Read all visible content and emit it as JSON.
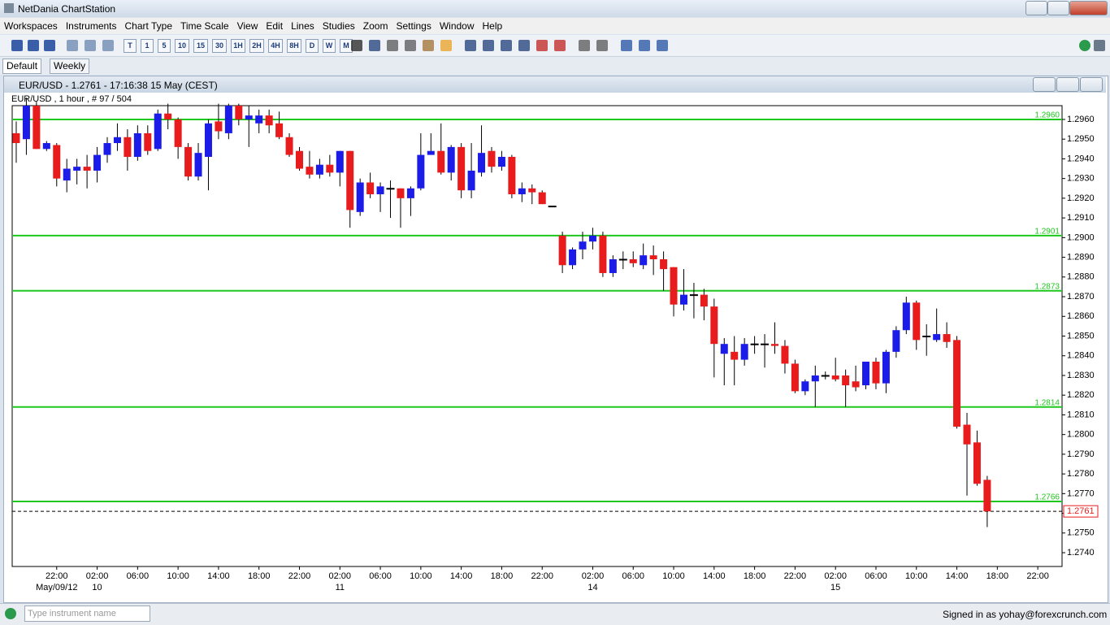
{
  "window": {
    "title": "NetDania ChartStation"
  },
  "menu": [
    "Workspaces",
    "Instruments",
    "Chart Type",
    "Time Scale",
    "View",
    "Edit",
    "Lines",
    "Studies",
    "Zoom",
    "Settings",
    "Window",
    "Help"
  ],
  "toolbar": [
    "T",
    "1",
    "5",
    "10",
    "15",
    "30",
    "1H",
    "2H",
    "4H",
    "8H",
    "D",
    "W",
    "M"
  ],
  "tabs": [
    "Default",
    "Weekly"
  ],
  "chart_window": {
    "title": "EUR/USD - 1.2761 - 17:16:38  15 May (CEST)",
    "info": "EUR/USD , 1 hour , # 97 / 504"
  },
  "status": {
    "search_placeholder": "Type instrument name",
    "signed_in": "Signed in as yohay@forexcrunch.com"
  },
  "chart_data": {
    "type": "candlestick",
    "up_color": "#1c1ce8",
    "down_color": "#e81c1c",
    "level_color": "#1ec81e",
    "open": [
      1.2953,
      1.295,
      1.2967,
      1.2945,
      1.2947,
      1.2929,
      1.2934,
      1.2936,
      1.2934,
      1.2942,
      1.2948,
      1.2951,
      1.2941,
      1.2953,
      1.2945,
      1.2963,
      1.296,
      1.2946,
      1.2931,
      1.2941,
      1.2959,
      1.2953,
      1.2967,
      1.296,
      1.2958,
      1.2962,
      1.2958,
      1.2951,
      1.2944,
      1.2936,
      1.2932,
      1.2937,
      1.2933,
      1.2944,
      1.2913,
      1.2928,
      1.2922,
      1.2925,
      1.2925,
      1.292,
      1.2925,
      1.2942,
      1.2944,
      1.2933,
      1.2946,
      1.2924,
      1.2933,
      1.2944,
      1.2936,
      1.2941,
      1.2922,
      1.2925,
      1.2923,
      1.2916,
      1.2901,
      1.2886,
      1.2894,
      1.2898,
      1.2901,
      1.2882,
      1.2889,
      1.2889,
      1.2886,
      1.2891,
      1.2889,
      1.2885,
      1.2866,
      1.2871,
      1.2871,
      1.2865,
      1.2841,
      1.2842,
      1.2838,
      1.2846,
      1.2846,
      1.2846,
      1.2845,
      1.2836,
      1.2822,
      1.2827,
      1.283,
      1.283,
      1.283,
      1.2827,
      1.2825,
      1.2837,
      1.2826,
      1.2842,
      1.2853,
      1.2867,
      1.285,
      1.2848,
      1.2851,
      1.2848,
      1.2805,
      1.2796,
      1.2777
    ],
    "high": [
      1.2959,
      1.2971,
      1.2969,
      1.2949,
      1.2948,
      1.294,
      1.294,
      1.2942,
      1.2946,
      1.2951,
      1.2958,
      1.2955,
      1.2957,
      1.2957,
      1.2965,
      1.2968,
      1.2961,
      1.2948,
      1.2948,
      1.296,
      1.2968,
      1.2968,
      1.2968,
      1.2967,
      1.2965,
      1.2965,
      1.2964,
      1.2953,
      1.2946,
      1.2944,
      1.294,
      1.2942,
      1.2944,
      1.2944,
      1.293,
      1.2933,
      1.2928,
      1.2929,
      1.2925,
      1.2926,
      1.2953,
      1.2953,
      1.2958,
      1.2947,
      1.2948,
      1.2948,
      1.2957,
      1.2946,
      1.2944,
      1.2942,
      1.2928,
      1.2927,
      1.2924,
      1.2916,
      1.2903,
      1.2895,
      1.2903,
      1.2905,
      1.2903,
      1.2891,
      1.2893,
      1.2893,
      1.2897,
      1.2896,
      1.2893,
      1.2885,
      1.2884,
      1.2877,
      1.2874,
      1.2869,
      1.2849,
      1.285,
      1.2849,
      1.285,
      1.2851,
      1.2857,
      1.2848,
      1.2838,
      1.2828,
      1.2835,
      1.2832,
      1.2839,
      1.2833,
      1.2835,
      1.2837,
      1.2839,
      1.2843,
      1.2855,
      1.287,
      1.2868,
      1.2856,
      1.2864,
      1.2857,
      1.285,
      1.2811,
      1.2802,
      1.2779
    ],
    "low": [
      1.2938,
      1.2942,
      1.2945,
      1.2944,
      1.2926,
      1.2923,
      1.2927,
      1.2925,
      1.2928,
      1.2938,
      1.2944,
      1.2934,
      1.2939,
      1.2942,
      1.2944,
      1.2955,
      1.294,
      1.2929,
      1.2929,
      1.2924,
      1.295,
      1.295,
      1.2957,
      1.2946,
      1.2953,
      1.2953,
      1.295,
      1.2941,
      1.2934,
      1.293,
      1.293,
      1.2931,
      1.2926,
      1.2905,
      1.2911,
      1.292,
      1.2913,
      1.291,
      1.2905,
      1.2911,
      1.2924,
      1.2942,
      1.2932,
      1.2929,
      1.292,
      1.292,
      1.2931,
      1.2933,
      1.2934,
      1.292,
      1.2918,
      1.2917,
      1.2917,
      1.2916,
      1.2882,
      1.2884,
      1.2889,
      1.2894,
      1.288,
      1.288,
      1.2884,
      1.2885,
      1.2884,
      1.2881,
      1.2873,
      1.286,
      1.2863,
      1.2859,
      1.2858,
      1.2829,
      1.2825,
      1.2825,
      1.2835,
      1.2841,
      1.2834,
      1.2841,
      1.2831,
      1.2821,
      1.282,
      1.2814,
      1.2828,
      1.2827,
      1.2814,
      1.2822,
      1.2823,
      1.2823,
      1.2821,
      1.2839,
      1.2851,
      1.2843,
      1.284,
      1.2847,
      1.2844,
      1.2803,
      1.2769,
      1.2774,
      1.2753
    ],
    "close": [
      1.2948,
      1.2967,
      1.2945,
      1.2948,
      1.293,
      1.2935,
      1.2936,
      1.2934,
      1.2942,
      1.2948,
      1.2951,
      1.2941,
      1.2953,
      1.2944,
      1.2963,
      1.296,
      1.2946,
      1.2931,
      1.2943,
      1.2958,
      1.2954,
      1.2967,
      1.296,
      1.2962,
      1.2962,
      1.2957,
      1.2951,
      1.2942,
      1.2935,
      1.2932,
      1.2937,
      1.2933,
      1.2944,
      1.2914,
      1.2928,
      1.2922,
      1.2926,
      1.2925,
      1.292,
      1.2925,
      1.2942,
      1.2944,
      1.2933,
      1.2946,
      1.2924,
      1.2934,
      1.2943,
      1.2936,
      1.2941,
      1.2922,
      1.2925,
      1.2923,
      1.2917,
      1.2916,
      1.2886,
      1.2894,
      1.2898,
      1.2901,
      1.2882,
      1.2889,
      1.2889,
      1.2887,
      1.2891,
      1.2889,
      1.2884,
      1.2866,
      1.2871,
      1.2871,
      1.2865,
      1.2846,
      1.2846,
      1.2838,
      1.2846,
      1.2846,
      1.2846,
      1.2845,
      1.2836,
      1.2822,
      1.2827,
      1.283,
      1.283,
      1.2828,
      1.2825,
      1.2824,
      1.2837,
      1.2826,
      1.2842,
      1.2853,
      1.2867,
      1.2848,
      1.285,
      1.2851,
      1.2847,
      1.2804,
      1.2795,
      1.2775,
      1.2761
    ],
    "xlim": [
      -0.4,
      103.4
    ],
    "xticks": [
      {
        "value": 4,
        "label": "22:00"
      },
      {
        "value": 8,
        "label": "02:00"
      },
      {
        "value": 12,
        "label": "06:00"
      },
      {
        "value": 16,
        "label": "10:00"
      },
      {
        "value": 20,
        "label": "14:00"
      },
      {
        "value": 24,
        "label": "18:00"
      },
      {
        "value": 28,
        "label": "22:00"
      },
      {
        "value": 32,
        "label": "02:00"
      },
      {
        "value": 36,
        "label": "06:00"
      },
      {
        "value": 40,
        "label": "10:00"
      },
      {
        "value": 44,
        "label": "14:00"
      },
      {
        "value": 48,
        "label": "18:00"
      },
      {
        "value": 52,
        "label": "22:00"
      },
      {
        "value": 57,
        "label": "02:00"
      },
      {
        "value": 61,
        "label": "06:00"
      },
      {
        "value": 65,
        "label": "10:00"
      },
      {
        "value": 69,
        "label": "14:00"
      },
      {
        "value": 73,
        "label": "18:00"
      },
      {
        "value": 77,
        "label": "22:00"
      },
      {
        "value": 81,
        "label": "02:00"
      },
      {
        "value": 85,
        "label": "06:00"
      },
      {
        "value": 89,
        "label": "10:00"
      },
      {
        "value": 93,
        "label": "14:00"
      },
      {
        "value": 97,
        "label": "18:00"
      },
      {
        "value": 101,
        "label": "22:00"
      }
    ],
    "date_ticks": [
      {
        "value": 4,
        "label": "May/09/12"
      },
      {
        "value": 8,
        "label": "10"
      },
      {
        "value": 32,
        "label": "11"
      },
      {
        "value": 57,
        "label": "14"
      },
      {
        "value": 81,
        "label": "15"
      }
    ],
    "ylim": [
      1.2733,
      1.2967
    ],
    "yticks": [
      {
        "value": 1.274,
        "label": "1.2740"
      },
      {
        "value": 1.275,
        "label": "1.2750"
      },
      {
        "value": 1.276,
        "label": "1.2760"
      },
      {
        "value": 1.277,
        "label": "1.2770"
      },
      {
        "value": 1.278,
        "label": "1.2780"
      },
      {
        "value": 1.279,
        "label": "1.2790"
      },
      {
        "value": 1.28,
        "label": "1.2800"
      },
      {
        "value": 1.281,
        "label": "1.2810"
      },
      {
        "value": 1.282,
        "label": "1.2820"
      },
      {
        "value": 1.283,
        "label": "1.2830"
      },
      {
        "value": 1.284,
        "label": "1.2840"
      },
      {
        "value": 1.285,
        "label": "1.2850"
      },
      {
        "value": 1.286,
        "label": "1.2860"
      },
      {
        "value": 1.287,
        "label": "1.2870"
      },
      {
        "value": 1.288,
        "label": "1.2880"
      },
      {
        "value": 1.289,
        "label": "1.2890"
      },
      {
        "value": 1.29,
        "label": "1.2900"
      },
      {
        "value": 1.291,
        "label": "1.2910"
      },
      {
        "value": 1.292,
        "label": "1.2920"
      },
      {
        "value": 1.293,
        "label": "1.2930"
      },
      {
        "value": 1.294,
        "label": "1.2940"
      },
      {
        "value": 1.295,
        "label": "1.2950"
      },
      {
        "value": 1.296,
        "label": "1.2960"
      }
    ],
    "levels": [
      {
        "value": 1.296,
        "label": "1.2960"
      },
      {
        "value": 1.2901,
        "label": "1.2901"
      },
      {
        "value": 1.2873,
        "label": "1.2873"
      },
      {
        "value": 1.2814,
        "label": "1.2814"
      },
      {
        "value": 1.2766,
        "label": "1.2766"
      }
    ],
    "last_price": {
      "value": 1.2761,
      "label": "1.2761"
    }
  }
}
